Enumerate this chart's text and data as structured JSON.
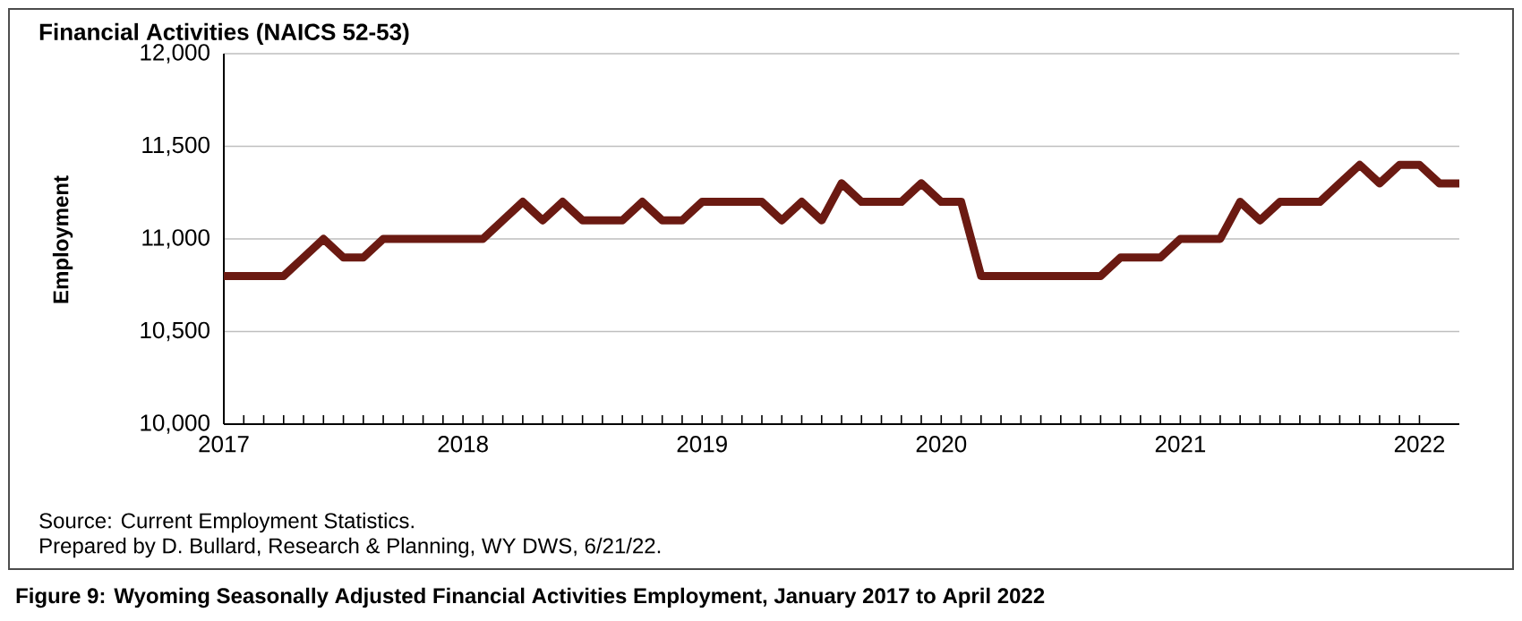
{
  "chart_data": {
    "type": "line",
    "title": "Financial Activities (NAICS 52-53)",
    "ylabel": "Employment",
    "x": [
      "2017-01",
      "2017-02",
      "2017-03",
      "2017-04",
      "2017-05",
      "2017-06",
      "2017-07",
      "2017-08",
      "2017-09",
      "2017-10",
      "2017-11",
      "2017-12",
      "2018-01",
      "2018-02",
      "2018-03",
      "2018-04",
      "2018-05",
      "2018-06",
      "2018-07",
      "2018-08",
      "2018-09",
      "2018-10",
      "2018-11",
      "2018-12",
      "2019-01",
      "2019-02",
      "2019-03",
      "2019-04",
      "2019-05",
      "2019-06",
      "2019-07",
      "2019-08",
      "2019-09",
      "2019-10",
      "2019-11",
      "2019-12",
      "2020-01",
      "2020-02",
      "2020-03",
      "2020-04",
      "2020-05",
      "2020-06",
      "2020-07",
      "2020-08",
      "2020-09",
      "2020-10",
      "2020-11",
      "2020-12",
      "2021-01",
      "2021-02",
      "2021-03",
      "2021-04",
      "2021-05",
      "2021-06",
      "2021-07",
      "2021-08",
      "2021-09",
      "2021-10",
      "2021-11",
      "2021-12",
      "2022-01",
      "2022-02",
      "2022-03"
    ],
    "series": [
      {
        "color": "#6b1a12",
        "values": [
          10800,
          10800,
          10800,
          10800,
          10900,
          11000,
          10900,
          10900,
          11000,
          11000,
          11000,
          11000,
          11000,
          11000,
          11100,
          11200,
          11100,
          11200,
          11100,
          11100,
          11100,
          11200,
          11100,
          11100,
          11200,
          11200,
          11200,
          11200,
          11100,
          11200,
          11100,
          11300,
          11200,
          11200,
          11200,
          11300,
          11200,
          11200,
          10800,
          10800,
          10800,
          10800,
          10800,
          10800,
          10800,
          10900,
          10900,
          10900,
          11000,
          11000,
          11000,
          11200,
          11100,
          11200,
          11200,
          11200,
          11300,
          11400,
          11300,
          11400,
          11400,
          11300,
          11300
        ]
      }
    ],
    "xlim": [
      "2017-01",
      "2022-03"
    ],
    "xticks": [
      {
        "value": "2017-01",
        "label": "2017"
      },
      {
        "value": "2018-01",
        "label": "2018"
      },
      {
        "value": "2019-01",
        "label": "2019"
      },
      {
        "value": "2020-01",
        "label": "2020"
      },
      {
        "value": "2021-01",
        "label": "2021"
      },
      {
        "value": "2022-01",
        "label": "2022"
      }
    ],
    "ylim": [
      10000,
      12000
    ],
    "yticks": [
      {
        "value": 10000,
        "label": "10,000"
      },
      {
        "value": 10500,
        "label": "10,500"
      },
      {
        "value": 11000,
        "label": "11,000"
      },
      {
        "value": 11500,
        "label": "11,500"
      },
      {
        "value": 12000,
        "label": "12,000"
      }
    ],
    "grid": "y",
    "marker": "none",
    "line_style": "solid",
    "annotations": [
      "Source: Current Employment Statistics.",
      "Prepared by D. Bullard, Research & Planning, WY DWS, 6/21/22.",
      "Figure 9: Wyoming Seasonally Adjusted Financial Activities Employment, January 2017 to April 2022"
    ]
  }
}
